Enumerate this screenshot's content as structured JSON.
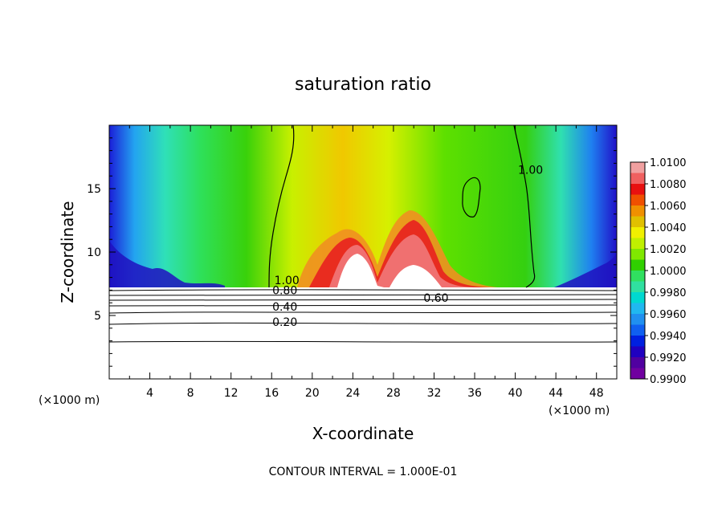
{
  "chart_data": {
    "type": "heatmap",
    "title": "saturation ratio",
    "xlabel": "X-coordinate",
    "ylabel": "Z-coordinate",
    "x_unit_left": "(×1000 m)",
    "x_unit_right": "(×1000 m)",
    "footer": "CONTOUR INTERVAL = 1.000E-01",
    "xlim": [
      0,
      50
    ],
    "ylim": [
      0,
      20
    ],
    "x_ticks": [
      "4",
      "8",
      "12",
      "16",
      "20",
      "24",
      "28",
      "32",
      "36",
      "40",
      "44",
      "48"
    ],
    "y_ticks": [
      "5",
      "10",
      "15"
    ],
    "colorbar": {
      "labels": [
        "1.0100",
        "1.0080",
        "1.0060",
        "1.0040",
        "1.0020",
        "1.0000",
        "0.9980",
        "0.9960",
        "0.9940",
        "0.9920",
        "0.9900"
      ],
      "colors": [
        "#f0a0a0",
        "#f06060",
        "#e81010",
        "#f05000",
        "#f09000",
        "#e0c000",
        "#f0f000",
        "#c0f000",
        "#80e800",
        "#30d000",
        "#30e060",
        "#30e0a0",
        "#00d8d0",
        "#20b8f0",
        "#2090f0",
        "#1060f0",
        "#0020e0",
        "#2000c0",
        "#5000a0",
        "#7000a0"
      ]
    },
    "contour_labels": [
      {
        "text": "1.00",
        "x": 41.5,
        "y": 16.3
      },
      {
        "text": "1.00",
        "x": 17.5,
        "y": 7.6
      },
      {
        "text": "0.80",
        "x": 17.3,
        "y": 6.8
      },
      {
        "text": "0.60",
        "x": 32.2,
        "y": 6.2
      },
      {
        "text": "0.40",
        "x": 17.3,
        "y": 5.5
      },
      {
        "text": "0.20",
        "x": 17.3,
        "y": 4.3
      }
    ]
  }
}
